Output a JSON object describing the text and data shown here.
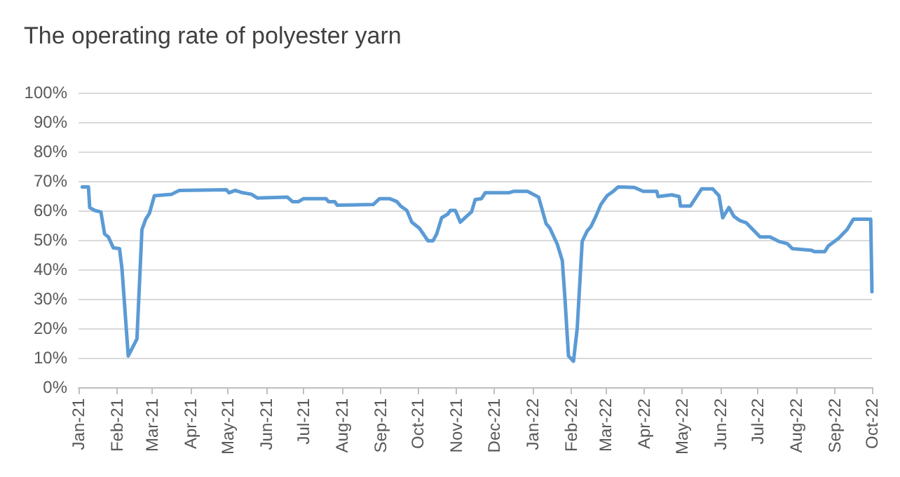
{
  "chart_data": {
    "type": "line",
    "title": "The operating rate of polyester yarn",
    "x": [
      "2021-01-04",
      "2021-01-09",
      "2021-01-10",
      "2021-01-14",
      "2021-01-19",
      "2021-01-22",
      "2021-01-25",
      "2021-01-29",
      "2021-02-03",
      "2021-02-05",
      "2021-02-10",
      "2021-02-17",
      "2021-02-21",
      "2021-02-24",
      "2021-02-27",
      "2021-03-03",
      "2021-03-17",
      "2021-03-23",
      "2021-04-30",
      "2021-05-02",
      "2021-05-07",
      "2021-05-13",
      "2021-05-20",
      "2021-05-25",
      "2021-06-18",
      "2021-06-22",
      "2021-06-27",
      "2021-07-01",
      "2021-07-19",
      "2021-07-21",
      "2021-07-26",
      "2021-07-28",
      "2021-08-26",
      "2021-08-31",
      "2021-09-08",
      "2021-09-14",
      "2021-09-17",
      "2021-09-22",
      "2021-09-26",
      "2021-10-02",
      "2021-10-09",
      "2021-10-13",
      "2021-10-16",
      "2021-10-20",
      "2021-10-25",
      "2021-10-27",
      "2021-10-31",
      "2021-11-04",
      "2021-11-09",
      "2021-11-13",
      "2021-11-16",
      "2021-11-21",
      "2021-11-24",
      "2021-12-13",
      "2021-12-17",
      "2021-12-28",
      "2022-01-06",
      "2022-01-12",
      "2022-01-15",
      "2022-01-21",
      "2022-01-25",
      "2022-01-27",
      "2022-01-30",
      "2022-02-03",
      "2022-02-06",
      "2022-02-10",
      "2022-02-14",
      "2022-02-17",
      "2022-02-21",
      "2022-02-25",
      "2022-03-02",
      "2022-03-07",
      "2022-03-11",
      "2022-03-24",
      "2022-03-31",
      "2022-04-11",
      "2022-04-12",
      "2022-04-23",
      "2022-04-29",
      "2022-04-30",
      "2022-05-08",
      "2022-05-17",
      "2022-05-26",
      "2022-05-31",
      "2022-06-03",
      "2022-06-08",
      "2022-06-12",
      "2022-06-17",
      "2022-06-22",
      "2022-07-03",
      "2022-07-11",
      "2022-07-18",
      "2022-07-25",
      "2022-07-29",
      "2022-08-13",
      "2022-08-16",
      "2022-08-24",
      "2022-08-27",
      "2022-09-04",
      "2022-09-11",
      "2022-09-16",
      "2022-09-30",
      "2022-10-01"
    ],
    "series": [
      {
        "color": "#5b9bd5",
        "values": [
          68,
          68,
          61,
          60,
          59.5,
          52,
          51,
          47.3,
          47,
          40,
          10.6,
          16.4,
          53.5,
          57,
          59,
          65,
          65.5,
          66.8,
          67,
          66,
          66.8,
          66,
          65.5,
          64.2,
          64.5,
          63,
          63,
          64,
          64,
          63,
          63,
          61.8,
          62,
          64,
          64,
          63,
          61.5,
          60,
          56,
          54,
          49.7,
          49.7,
          52,
          57.5,
          58.8,
          60,
          60,
          56,
          58,
          59.5,
          63.7,
          64,
          66,
          66,
          66.5,
          66.5,
          64.5,
          55.5,
          54,
          48.5,
          43,
          31,
          10.6,
          8.8,
          20,
          49.5,
          53,
          54.5,
          58,
          62,
          65,
          66.5,
          68,
          67.8,
          66.5,
          66.5,
          64.7,
          65.3,
          64.7,
          61.5,
          61.5,
          67.3,
          67.3,
          65,
          57.5,
          61,
          58,
          56.5,
          55.8,
          51,
          51,
          49.5,
          48.7,
          47,
          46.5,
          46,
          46,
          48,
          50.5,
          53.5,
          57,
          57,
          32.4
        ]
      }
    ],
    "xlim": [
      "2021-01-01",
      "2022-10-01"
    ],
    "xticks": [
      {
        "value": "2021-01-01",
        "label": "Jan-21"
      },
      {
        "value": "2021-02-01",
        "label": "Feb-21"
      },
      {
        "value": "2021-03-01",
        "label": "Mar-21"
      },
      {
        "value": "2021-04-01",
        "label": "Apr-21"
      },
      {
        "value": "2021-05-01",
        "label": "May-21"
      },
      {
        "value": "2021-06-01",
        "label": "Jun-21"
      },
      {
        "value": "2021-07-01",
        "label": "Jul-21"
      },
      {
        "value": "2021-08-01",
        "label": "Aug-21"
      },
      {
        "value": "2021-09-01",
        "label": "Sep-21"
      },
      {
        "value": "2021-10-01",
        "label": "Oct-21"
      },
      {
        "value": "2021-11-01",
        "label": "Nov-21"
      },
      {
        "value": "2021-12-01",
        "label": "Dec-21"
      },
      {
        "value": "2022-01-01",
        "label": "Jan-22"
      },
      {
        "value": "2022-02-01",
        "label": "Feb-22"
      },
      {
        "value": "2022-03-01",
        "label": "Mar-22"
      },
      {
        "value": "2022-04-01",
        "label": "Apr-22"
      },
      {
        "value": "2022-05-01",
        "label": "May-22"
      },
      {
        "value": "2022-06-01",
        "label": "Jun-22"
      },
      {
        "value": "2022-07-01",
        "label": "Jul-22"
      },
      {
        "value": "2022-08-01",
        "label": "Aug-22"
      },
      {
        "value": "2022-09-01",
        "label": "Sep-22"
      },
      {
        "value": "2022-10-01",
        "label": "Oct-22"
      }
    ],
    "ylim": [
      0,
      100
    ],
    "yticks": [
      {
        "value": 0,
        "label": "0%"
      },
      {
        "value": 10,
        "label": "10%"
      },
      {
        "value": 20,
        "label": "20%"
      },
      {
        "value": 30,
        "label": "30%"
      },
      {
        "value": 40,
        "label": "40%"
      },
      {
        "value": 50,
        "label": "50%"
      },
      {
        "value": 60,
        "label": "60%"
      },
      {
        "value": 70,
        "label": "70%"
      },
      {
        "value": 80,
        "label": "80%"
      },
      {
        "value": 90,
        "label": "90%"
      },
      {
        "value": 100,
        "label": "100%"
      }
    ],
    "grid": "y",
    "marker": "none",
    "line_style": "solid"
  }
}
